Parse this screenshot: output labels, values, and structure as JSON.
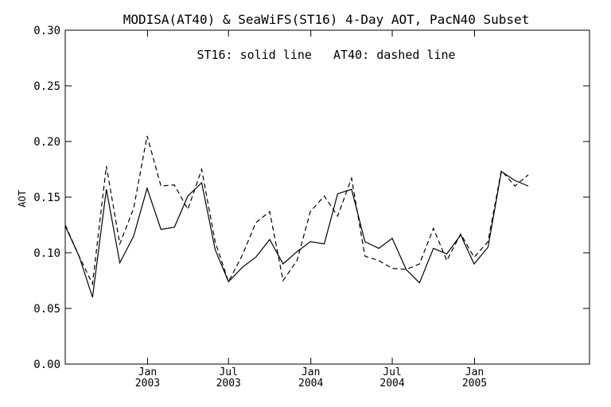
{
  "chart_data": {
    "type": "line",
    "title": "MODISA(AT40) & SeaWiFS(ST16) 4-Day AOT, PacN40 Subset",
    "annotation": "ST16: solid line   AT40: dashed line",
    "xlabel": "",
    "ylabel": "AOT",
    "ylim": [
      0.0,
      0.3
    ],
    "yticks": [
      "0.00",
      "0.05",
      "0.10",
      "0.15",
      "0.20",
      "0.25",
      "0.30"
    ],
    "xlim": [
      "2002-07-01",
      "2005-09-15"
    ],
    "grid": false,
    "xticks": [
      {
        "date": "2003-01-01",
        "month": "Jan",
        "year": "2003"
      },
      {
        "date": "2003-07-01",
        "month": "Jul",
        "year": "2003"
      },
      {
        "date": "2004-01-01",
        "month": "Jan",
        "year": "2004"
      },
      {
        "date": "2004-07-01",
        "month": "Jul",
        "year": "2004"
      },
      {
        "date": "2005-01-01",
        "month": "Jan",
        "year": "2005"
      }
    ],
    "series": [
      {
        "name": "ST16",
        "style": "solid",
        "color": "#000000",
        "points": [
          [
            "2002-07-01",
            0.124
          ],
          [
            "2002-08-01",
            0.097
          ],
          [
            "2002-08-31",
            0.06
          ],
          [
            "2002-10-01",
            0.157
          ],
          [
            "2002-10-31",
            0.091
          ],
          [
            "2002-12-01",
            0.115
          ],
          [
            "2002-12-31",
            0.158
          ],
          [
            "2003-01-31",
            0.121
          ],
          [
            "2003-03-02",
            0.123
          ],
          [
            "2003-04-01",
            0.151
          ],
          [
            "2003-05-02",
            0.163
          ],
          [
            "2003-06-01",
            0.103
          ],
          [
            "2003-07-01",
            0.074
          ],
          [
            "2003-08-01",
            0.087
          ],
          [
            "2003-08-31",
            0.096
          ],
          [
            "2003-10-01",
            0.112
          ],
          [
            "2003-10-31",
            0.09
          ],
          [
            "2003-12-01",
            0.101
          ],
          [
            "2003-12-31",
            0.11
          ],
          [
            "2004-01-31",
            0.108
          ],
          [
            "2004-03-01",
            0.153
          ],
          [
            "2004-04-01",
            0.157
          ],
          [
            "2004-05-01",
            0.11
          ],
          [
            "2004-06-01",
            0.104
          ],
          [
            "2004-07-01",
            0.113
          ],
          [
            "2004-08-01",
            0.085
          ],
          [
            "2004-08-31",
            0.073
          ],
          [
            "2004-10-01",
            0.104
          ],
          [
            "2004-10-31",
            0.099
          ],
          [
            "2004-12-01",
            0.116
          ],
          [
            "2004-12-31",
            0.09
          ],
          [
            "2005-01-31",
            0.105
          ],
          [
            "2005-03-02",
            0.173
          ],
          [
            "2005-04-01",
            0.165
          ],
          [
            "2005-05-01",
            0.16
          ]
        ]
      },
      {
        "name": "AT40",
        "style": "dashed",
        "color": "#000000",
        "points": [
          [
            "2002-07-01",
            0.125
          ],
          [
            "2002-08-01",
            0.097
          ],
          [
            "2002-08-31",
            0.072
          ],
          [
            "2002-10-01",
            0.178
          ],
          [
            "2002-10-31",
            0.108
          ],
          [
            "2002-12-01",
            0.14
          ],
          [
            "2002-12-31",
            0.205
          ],
          [
            "2003-01-31",
            0.16
          ],
          [
            "2003-03-02",
            0.161
          ],
          [
            "2003-04-01",
            0.139
          ],
          [
            "2003-05-02",
            0.175
          ],
          [
            "2003-06-01",
            0.11
          ],
          [
            "2003-07-01",
            0.074
          ],
          [
            "2003-08-01",
            0.098
          ],
          [
            "2003-08-31",
            0.127
          ],
          [
            "2003-10-01",
            0.137
          ],
          [
            "2003-10-31",
            0.075
          ],
          [
            "2003-12-01",
            0.093
          ],
          [
            "2003-12-31",
            0.137
          ],
          [
            "2004-01-31",
            0.151
          ],
          [
            "2004-03-01",
            0.133
          ],
          [
            "2004-04-01",
            0.167
          ],
          [
            "2004-05-01",
            0.097
          ],
          [
            "2004-06-01",
            0.093
          ],
          [
            "2004-07-01",
            0.086
          ],
          [
            "2004-08-01",
            0.085
          ],
          [
            "2004-08-31",
            0.09
          ],
          [
            "2004-10-01",
            0.122
          ],
          [
            "2004-10-31",
            0.093
          ],
          [
            "2004-12-01",
            0.117
          ],
          [
            "2004-12-31",
            0.096
          ],
          [
            "2005-01-31",
            0.11
          ],
          [
            "2005-03-02",
            0.174
          ],
          [
            "2005-04-01",
            0.16
          ],
          [
            "2005-05-01",
            0.17
          ]
        ]
      }
    ]
  }
}
